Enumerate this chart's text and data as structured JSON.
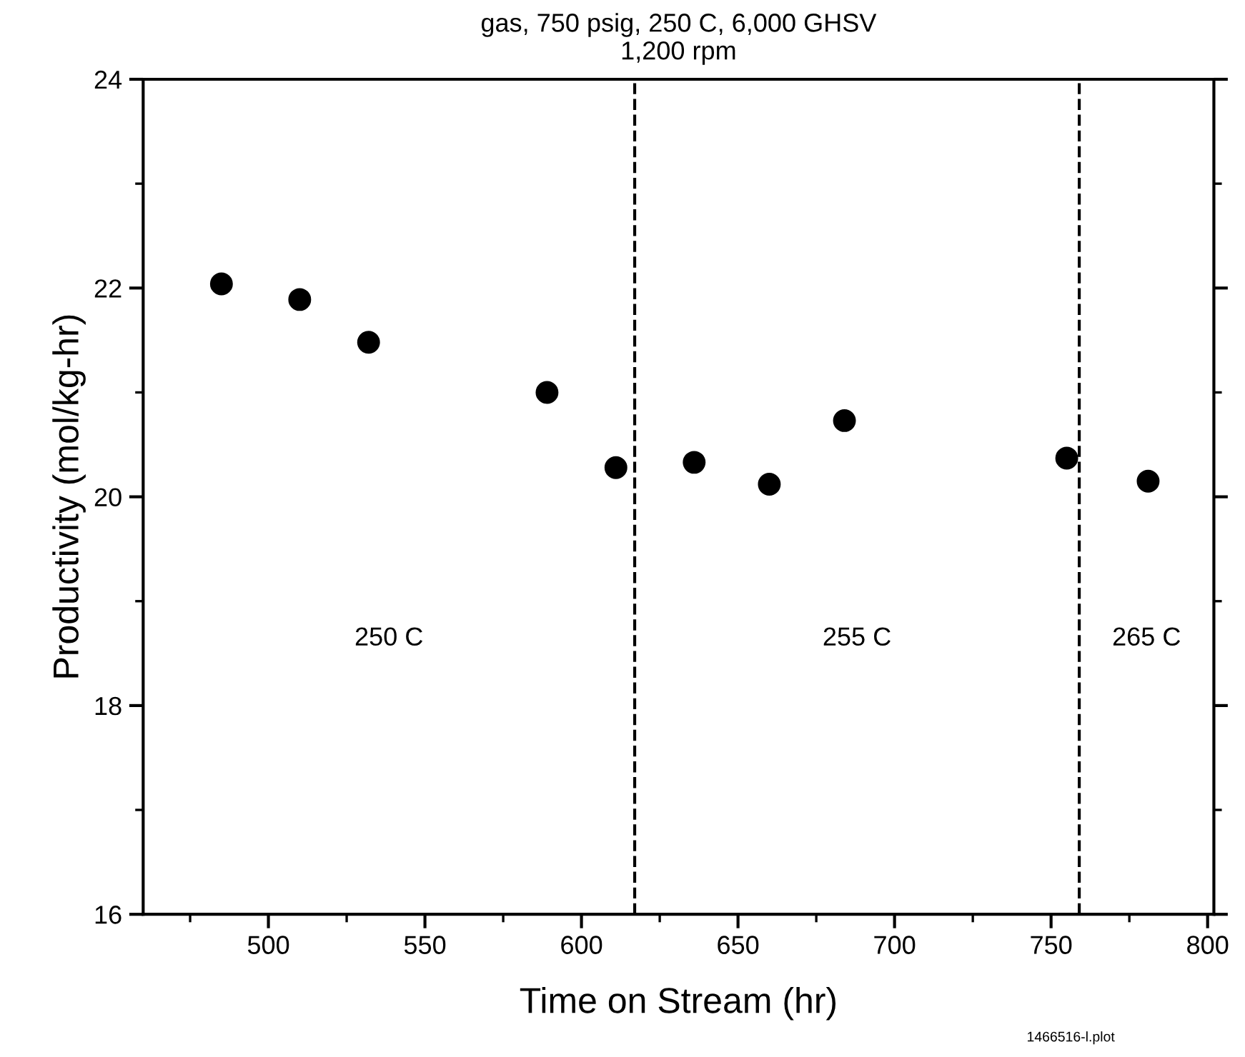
{
  "chart_data": {
    "type": "scatter",
    "title": "gas, 750 psig, 250 C, 6,000 GHSV\n1,200 rpm",
    "xlabel": "Time on Stream (hr)",
    "ylabel": "Productivity (mol/kg-hr)",
    "x": [
      485,
      510,
      532,
      589,
      611,
      636,
      660,
      684,
      755,
      781
    ],
    "series": [
      {
        "color": "#000000",
        "values": [
          22.04,
          21.89,
          21.48,
          21.0,
          20.28,
          20.33,
          20.12,
          20.73,
          20.37,
          20.15
        ]
      }
    ],
    "marker": "circle",
    "xlim": [
      460,
      802
    ],
    "xticks": [
      500,
      550,
      600,
      650,
      700,
      750,
      800
    ],
    "ylim": [
      16,
      24
    ],
    "yticks": [
      16,
      18,
      20,
      22,
      24
    ],
    "ref_lines": [
      {
        "axis": "x",
        "value": 617,
        "line_style": "dashed",
        "color": "#000000"
      },
      {
        "axis": "x",
        "value": 759,
        "line_style": "dashed",
        "color": "#000000"
      }
    ],
    "annotations": [
      "250 C",
      "255 C",
      "265 C",
      "1466516-l.plot"
    ],
    "grid": false,
    "legend": false
  }
}
